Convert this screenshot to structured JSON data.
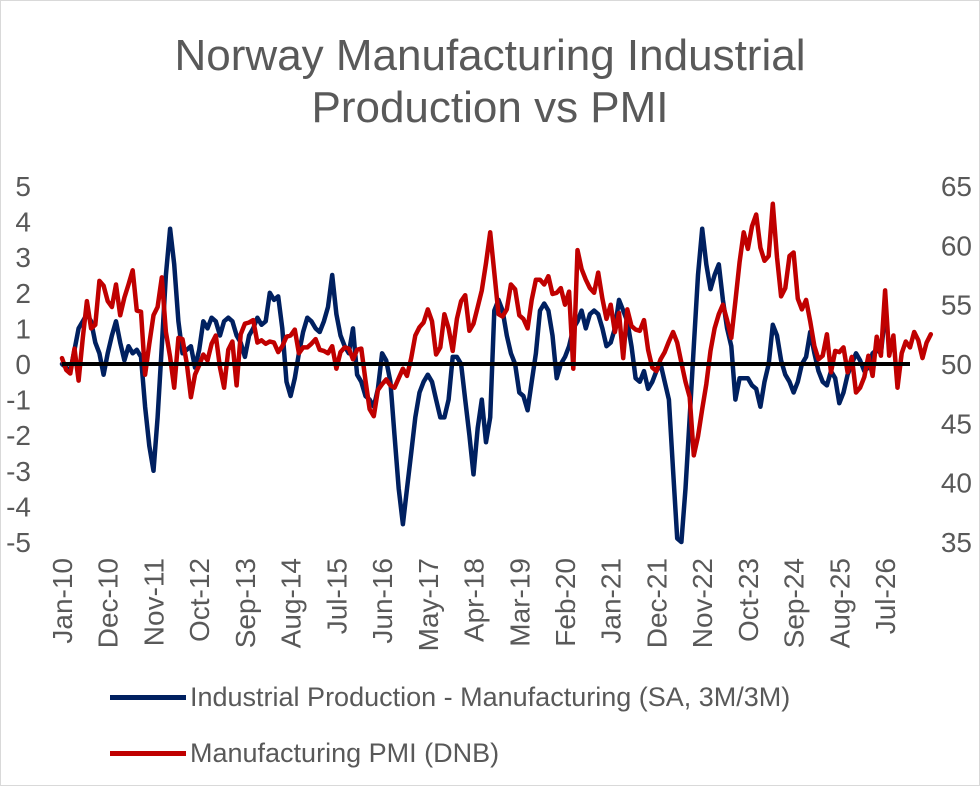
{
  "chart_data": {
    "type": "line",
    "title_lines": [
      "Norway Manufacturing Industrial",
      "Production vs PMI"
    ],
    "x_tick_labels": [
      "Jan-10",
      "Dec-10",
      "Nov-11",
      "Oct-12",
      "Sep-13",
      "Aug-14",
      "Jul-15",
      "Jun-16",
      "May-17",
      "Apr-18",
      "Mar-19",
      "Feb-20",
      "Jan-21",
      "Dec-21",
      "Nov-22",
      "Oct-23",
      "Sep-24",
      "Aug-25",
      "Jul-26"
    ],
    "x_range": [
      "Jan-10",
      "Jan-27"
    ],
    "y_left": {
      "min": -5,
      "max": 5,
      "step": 1,
      "tick_labels": [
        "5",
        "4",
        "3",
        "2",
        "1",
        "0",
        "-1",
        "-2",
        "-3",
        "-4",
        "-5"
      ]
    },
    "y_right": {
      "min": 35,
      "max": 65,
      "step": 5,
      "tick_labels": [
        "65",
        "60",
        "55",
        "50",
        "45",
        "40",
        "35"
      ]
    },
    "zero_line": true,
    "grid": false,
    "legend_position": "bottom",
    "series": [
      {
        "name": "Industrial Production - Manufacturing (SA, 3M/3M)",
        "color": "#002060",
        "axis": "left",
        "start": "Jan-10",
        "frequency": "monthly",
        "values": [
          0.0,
          -0.1,
          -0.2,
          0.4,
          1.0,
          1.2,
          1.4,
          1.2,
          0.6,
          0.3,
          -0.3,
          0.3,
          0.8,
          1.2,
          0.6,
          0.1,
          0.5,
          0.3,
          0.4,
          0.2,
          -1.2,
          -2.3,
          -3.0,
          -1.5,
          0.5,
          2.5,
          3.8,
          2.8,
          1.2,
          0.3,
          0.4,
          0.5,
          -0.1,
          0.4,
          1.2,
          1.0,
          1.3,
          1.2,
          0.8,
          1.2,
          1.3,
          1.2,
          0.8,
          0.6,
          0.2,
          0.8,
          1.0,
          1.3,
          1.1,
          1.2,
          2.0,
          1.8,
          1.9,
          1.0,
          -0.5,
          -0.9,
          -0.4,
          0.3,
          0.9,
          1.3,
          1.2,
          1.0,
          0.9,
          1.2,
          1.6,
          2.5,
          1.4,
          0.8,
          0.5,
          0.3,
          1.0,
          -0.3,
          -0.5,
          -0.9,
          -1.0,
          -1.2,
          -0.7,
          0.3,
          0.1,
          -0.5,
          -2.0,
          -3.5,
          -4.5,
          -3.5,
          -2.5,
          -1.5,
          -0.8,
          -0.5,
          -0.3,
          -0.5,
          -1.0,
          -1.5,
          -1.5,
          -1.0,
          0.2,
          0.2,
          0.0,
          -1.0,
          -2.0,
          -3.1,
          -1.8,
          -1.0,
          -2.2,
          -1.5,
          1.5,
          1.8,
          1.5,
          0.8,
          0.3,
          0.0,
          -0.8,
          -0.9,
          -1.3,
          -0.5,
          0.3,
          1.5,
          1.7,
          1.5,
          0.8,
          -0.4,
          0.0,
          0.2,
          0.5,
          1.0,
          1.2,
          1.5,
          1.0,
          1.4,
          1.5,
          1.4,
          1.0,
          0.5,
          0.6,
          1.0,
          1.8,
          1.5,
          1.2,
          0.5,
          -0.4,
          -0.5,
          -0.2,
          -0.7,
          -0.5,
          -0.2,
          0.0,
          -0.5,
          -1.0,
          -3.0,
          -4.9,
          -5.0,
          -3.5,
          -1.5,
          0.5,
          2.5,
          3.8,
          2.8,
          2.1,
          2.5,
          2.8,
          1.8,
          1.0,
          0.5,
          -1.0,
          -0.4,
          -0.4,
          -0.4,
          -0.6,
          -0.7,
          -1.2,
          -0.5,
          0.0,
          1.1,
          0.8,
          0.1,
          -0.3,
          -0.5,
          -0.8,
          -0.5,
          0.0,
          0.2,
          0.9,
          0.3,
          -0.2,
          -0.5,
          -0.6,
          -0.2,
          -0.4,
          -1.1,
          -0.8,
          -0.3,
          0.0,
          0.3,
          0.1,
          -0.2,
          -0.1,
          0.3,
          0.4,
          0.3,
          1.4
        ]
      },
      {
        "name": "Manufacturing PMI (DNB)",
        "color": "#c00000",
        "axis": "right",
        "start": "Jan-10",
        "frequency": "monthly",
        "values": [
          50.5,
          49.5,
          49.2,
          51.3,
          48.6,
          52.2,
          55.3,
          53.0,
          53.3,
          57.0,
          56.6,
          55.3,
          54.8,
          56.7,
          54.1,
          55.6,
          56.7,
          57.9,
          54.5,
          54.4,
          49.1,
          51.7,
          54.1,
          54.8,
          57.3,
          52.7,
          50.6,
          48.0,
          52.2,
          52.1,
          50.1,
          47.2,
          49.1,
          49.9,
          50.8,
          50.3,
          51.7,
          52.4,
          49.7,
          48.0,
          51.2,
          51.9,
          48.2,
          52.5,
          53.4,
          53.5,
          53.7,
          51.8,
          52.0,
          51.7,
          51.9,
          51.8,
          51.0,
          51.5,
          52.3,
          52.4,
          52.9,
          50.9,
          51.4,
          51.4,
          51.7,
          52.1,
          51.2,
          51.1,
          50.9,
          51.5,
          49.6,
          51.0,
          51.4,
          51.3,
          50.4,
          51.2,
          51.3,
          48.6,
          46.2,
          45.6,
          47.8,
          48.3,
          48.7,
          48.2,
          48.0,
          48.8,
          49.6,
          49.0,
          50.5,
          52.4,
          53.1,
          53.5,
          54.6,
          53.6,
          50.8,
          51.4,
          54.2,
          53.0,
          51.1,
          53.8,
          55.3,
          55.8,
          52.8,
          53.4,
          54.8,
          56.2,
          58.5,
          61.1,
          57.7,
          54.2,
          54.0,
          54.6,
          56.7,
          56.3,
          54.1,
          53.8,
          53.0,
          55.4,
          57.1,
          57.1,
          56.7,
          57.4,
          55.9,
          56.0,
          56.4,
          55.0,
          56.1,
          49.6,
          59.6,
          58.0,
          57.1,
          56.4,
          56.0,
          57.7,
          55.5,
          53.8,
          55.0,
          52.7,
          54.3,
          50.5,
          54.6,
          53.2,
          52.9,
          52.8,
          53.7,
          51.2,
          49.7,
          49.4,
          50.4,
          51.0,
          51.9,
          52.7,
          51.8,
          50.1,
          48.5,
          47.2,
          42.3,
          43.9,
          46.2,
          48.3,
          51.1,
          53.0,
          54.2,
          55.0,
          53.7,
          52.2,
          55.3,
          58.6,
          61.1,
          59.7,
          61.6,
          62.6,
          59.8,
          58.7,
          59.1,
          63.5,
          59.0,
          55.7,
          56.4,
          59.1,
          59.4,
          55.5,
          54.6,
          55.4,
          53.6,
          51.5,
          50.4,
          50.7,
          52.5,
          49.3,
          51.1,
          51.0,
          51.4,
          49.3,
          50.6,
          47.6,
          48.0,
          48.9,
          50.7,
          49.0,
          52.3,
          50.7,
          56.2,
          50.7,
          52.4,
          48.0,
          50.9,
          51.9,
          51.4,
          52.7,
          52.0,
          50.5,
          51.8,
          52.5
        ]
      }
    ]
  }
}
